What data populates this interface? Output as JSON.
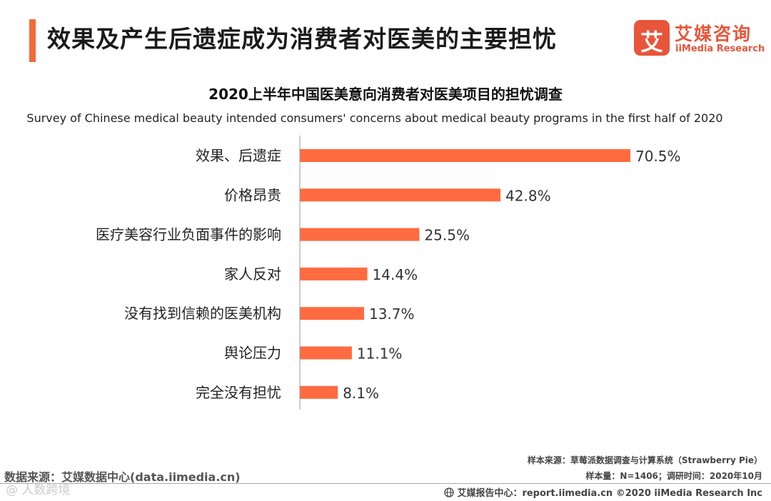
{
  "header": {
    "title": "效果及产生后遗症成为消费者对医美的主要担忧",
    "accent_color": "#F26B3A"
  },
  "logo": {
    "mark": "艾",
    "name_cn": "艾媒咨询",
    "name_en": "iiMedia Research",
    "color": "#E8553A"
  },
  "chart_data": {
    "type": "bar",
    "orientation": "horizontal",
    "title": "2020上半年中国医美意向消费者对医美项目的担忧调查",
    "subtitle": "Survey of  Chinese medical beauty intended consumers' concerns about medical beauty programs in the first half of 2020",
    "categories": [
      "效果、后遗症",
      "价格昂贵",
      "医疗美容行业负面事件的影响",
      "家人反对",
      "没有找到信赖的医美机构",
      "舆论压力",
      "完全没有担忧"
    ],
    "values": [
      70.5,
      42.8,
      25.5,
      14.4,
      13.7,
      11.1,
      8.1
    ],
    "value_labels": [
      "70.5%",
      "42.8%",
      "25.5%",
      "14.4%",
      "13.7%",
      "11.1%",
      "8.1%"
    ],
    "unit": "%",
    "xlim": [
      0,
      70.5
    ],
    "bar_color": "#FF6B40",
    "xlabel": "",
    "ylabel": "",
    "grid": false,
    "legend": "none"
  },
  "footer": {
    "sample_source": "样本来源：草莓派数据调查与计算系统（Strawberry Pie）",
    "sample_size": "样本量：N=1406；调研时间：2020年10月",
    "data_source": "数据来源：艾媒数据中心(data.iimedia.cn)",
    "watermark": "@ 人数跨境",
    "report_center": "艾媒报告中心：report.iimedia.cn   ©2020  iiMedia Research  Inc"
  }
}
